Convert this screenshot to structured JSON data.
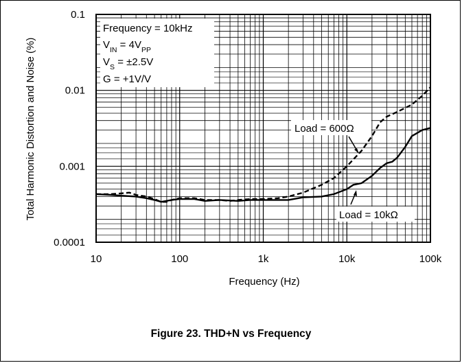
{
  "caption": "Figure 23. THD+N vs Frequency",
  "chart_data": {
    "type": "line",
    "xlabel": "Frequency (Hz)",
    "ylabel": "Total Harmonic Distortion and Noise (%)",
    "x_scale": "log",
    "y_scale": "log",
    "xlim": [
      10,
      100000
    ],
    "ylim": [
      0.0001,
      0.1
    ],
    "x_ticks": [
      10,
      100,
      1000,
      10000,
      100000
    ],
    "x_tick_labels": [
      "10",
      "100",
      "1k",
      "10k",
      "100k"
    ],
    "y_ticks": [
      0.0001,
      0.001,
      0.01,
      0.1
    ],
    "y_tick_labels": [
      "0.0001",
      "0.001",
      "0.01",
      "0.1"
    ],
    "grid": true,
    "conditions": [
      {
        "pre": "Frequency = 10kHz"
      },
      {
        "pre": "V",
        "sub": "IN",
        "post": " = 4V",
        "sub2": "PP"
      },
      {
        "pre": "V",
        "sub": "S",
        "post": " = ±2.5V"
      },
      {
        "pre": "G = +1V/V"
      }
    ],
    "series": [
      {
        "name": "Load = 600Ω",
        "style": "dashed",
        "points": [
          [
            10,
            0.00043
          ],
          [
            15,
            0.00043
          ],
          [
            20,
            0.00044
          ],
          [
            25,
            0.00045
          ],
          [
            30,
            0.00042
          ],
          [
            40,
            0.0004
          ],
          [
            50,
            0.00037
          ],
          [
            60,
            0.00034
          ],
          [
            70,
            0.00034
          ],
          [
            80,
            0.00036
          ],
          [
            100,
            0.00038
          ],
          [
            150,
            0.00038
          ],
          [
            200,
            0.00036
          ],
          [
            300,
            0.00036
          ],
          [
            400,
            0.00035
          ],
          [
            500,
            0.00036
          ],
          [
            700,
            0.00037
          ],
          [
            1000,
            0.00037
          ],
          [
            1500,
            0.00038
          ],
          [
            2000,
            0.0004
          ],
          [
            3000,
            0.00045
          ],
          [
            5000,
            0.00057
          ],
          [
            7000,
            0.0007
          ],
          [
            10000,
            0.001
          ],
          [
            15000,
            0.0016
          ],
          [
            20000,
            0.0025
          ],
          [
            25000,
            0.0038
          ],
          [
            30000,
            0.0045
          ],
          [
            40000,
            0.0052
          ],
          [
            60000,
            0.0065
          ],
          [
            80000,
            0.0085
          ],
          [
            100000,
            0.011
          ]
        ]
      },
      {
        "name": "Load = 10kΩ",
        "style": "solid",
        "points": [
          [
            10,
            0.00043
          ],
          [
            15,
            0.00042
          ],
          [
            20,
            0.00041
          ],
          [
            30,
            0.0004
          ],
          [
            40,
            0.00038
          ],
          [
            50,
            0.00036
          ],
          [
            60,
            0.00034
          ],
          [
            80,
            0.00036
          ],
          [
            100,
            0.00037
          ],
          [
            150,
            0.00037
          ],
          [
            200,
            0.00035
          ],
          [
            300,
            0.00036
          ],
          [
            500,
            0.00035
          ],
          [
            700,
            0.00036
          ],
          [
            1000,
            0.00036
          ],
          [
            1500,
            0.00036
          ],
          [
            2000,
            0.00036
          ],
          [
            3000,
            0.00039
          ],
          [
            5000,
            0.0004
          ],
          [
            7000,
            0.00043
          ],
          [
            10000,
            0.0005
          ],
          [
            12000,
            0.00057
          ],
          [
            15000,
            0.0006
          ],
          [
            20000,
            0.00075
          ],
          [
            25000,
            0.00095
          ],
          [
            30000,
            0.0011
          ],
          [
            35000,
            0.00115
          ],
          [
            40000,
            0.0013
          ],
          [
            50000,
            0.0018
          ],
          [
            60000,
            0.0025
          ],
          [
            80000,
            0.003
          ],
          [
            100000,
            0.0032
          ]
        ]
      }
    ]
  }
}
